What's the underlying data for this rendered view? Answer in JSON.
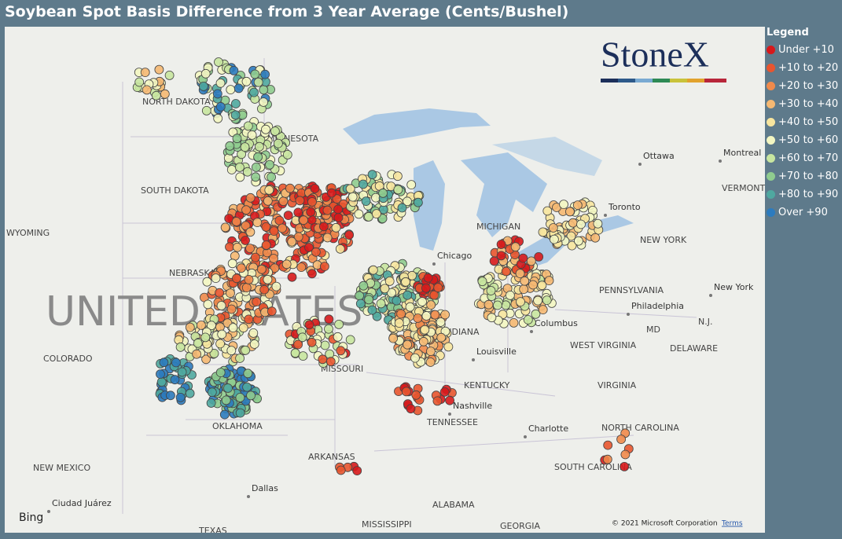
{
  "title": "Soybean Spot Basis Difference from 3 Year Average (Cents/Bushel)",
  "logo": "StoneX",
  "legend": {
    "title": "Legend",
    "items": [
      {
        "label": "Under +10",
        "color": "#d7191c"
      },
      {
        "label": "+10 to +20",
        "color": "#e8552f"
      },
      {
        "label": "+20 to +30",
        "color": "#f08a4b"
      },
      {
        "label": "+30 to +40",
        "color": "#f5b872"
      },
      {
        "label": "+40 to +50",
        "color": "#f7e59e"
      },
      {
        "label": "+50 to +60",
        "color": "#f3f6c2"
      },
      {
        "label": "+60 to +70",
        "color": "#c8e6a0"
      },
      {
        "label": "+70 to +80",
        "color": "#8fcc8f"
      },
      {
        "label": "+80 to +90",
        "color": "#4fa8a0"
      },
      {
        "label": "Over +90",
        "color": "#2c7bbe"
      }
    ]
  },
  "country_label": "UNITED STATES",
  "state_labels": [
    "NORTH DAKOTA",
    "MINNESOTA",
    "SOUTH DAKOTA",
    "WYOMING",
    "NEBRASKA",
    "COLORADO",
    "MISSOURI",
    "OKLAHOMA",
    "NEW MEXICO",
    "ARKANSAS",
    "TENNESSEE",
    "KENTUCKY",
    "ALABAMA",
    "MISSISSIPPI",
    "TEXAS",
    "GEORGIA",
    "SOUTH CAROLINA",
    "NORTH CAROLINA",
    "VIRGINIA",
    "WEST VIRGINIA",
    "PENNSYLVANIA",
    "NEW YORK",
    "VERMONT",
    "MICHIGAN",
    "INDIANA",
    "MD",
    "DELAWARE",
    "N.J."
  ],
  "city_labels": [
    "Ottawa",
    "Montreal",
    "Toronto",
    "Chicago",
    "Columbus",
    "Louisville",
    "Nashville",
    "Charlotte",
    "Dallas",
    "Philadelphia",
    "New York",
    "Ciudad Juárez"
  ],
  "attribution": {
    "copyright": "© 2021 Microsoft Corporation",
    "terms": "Terms",
    "brand": "Bing"
  }
}
